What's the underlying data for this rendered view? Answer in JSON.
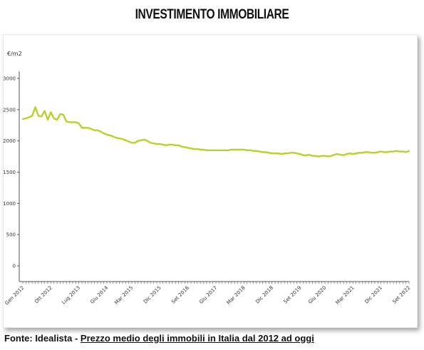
{
  "title": "INVESTIMENTO IMMOBILIARE",
  "source": {
    "prefix": "Fonte: Idealista - ",
    "link_text": "Prezzo medio degli immobili in Italia dal 2012 ad oggi"
  },
  "colors": {
    "line": "#b5d22b",
    "axis": "#555555"
  },
  "chart_data": {
    "type": "line",
    "title": "",
    "xlabel": "",
    "ylabel": "€/m2",
    "ylim": [
      0,
      3000
    ],
    "yticks": [
      0,
      500,
      1000,
      1500,
      2000,
      2500,
      3000
    ],
    "grid": false,
    "x_tick_labels": [
      "Gen 2012",
      "Ott 2012",
      "Lug 2013",
      "Giu 2014",
      "Mar 2015",
      "Dic 2015",
      "Set 2016",
      "Giu 2017",
      "Mar 2018",
      "Dic 2018",
      "Set 2019",
      "Giu 2020",
      "Mar 2021",
      "Dic 2021",
      "Set 2022"
    ],
    "series": [
      {
        "values": [
          2350,
          2360,
          2380,
          2400,
          2540,
          2400,
          2390,
          2480,
          2340,
          2460,
          2360,
          2340,
          2430,
          2420,
          2310,
          2300,
          2300,
          2300,
          2280,
          2210,
          2210,
          2210,
          2190,
          2170,
          2170,
          2150,
          2120,
          2100,
          2090,
          2070,
          2050,
          2040,
          2030,
          2010,
          1990,
          1970,
          1970,
          2000,
          2010,
          2020,
          2000,
          1970,
          1960,
          1950,
          1950,
          1940,
          1930,
          1940,
          1940,
          1930,
          1930,
          1910,
          1900,
          1890,
          1880,
          1870,
          1870,
          1860,
          1860,
          1850,
          1850,
          1850,
          1850,
          1850,
          1850,
          1850,
          1850,
          1860,
          1860,
          1860,
          1860,
          1860,
          1850,
          1850,
          1840,
          1840,
          1830,
          1820,
          1820,
          1810,
          1800,
          1800,
          1800,
          1790,
          1800,
          1800,
          1810,
          1810,
          1800,
          1790,
          1770,
          1770,
          1780,
          1760,
          1760,
          1750,
          1760,
          1760,
          1750,
          1760,
          1780,
          1790,
          1780,
          1770,
          1790,
          1800,
          1790,
          1800,
          1810,
          1810,
          1820,
          1820,
          1810,
          1810,
          1820,
          1830,
          1820,
          1820,
          1830,
          1830,
          1840,
          1830,
          1830,
          1820,
          1840
        ]
      }
    ]
  }
}
